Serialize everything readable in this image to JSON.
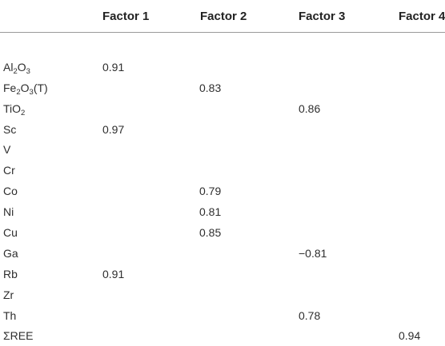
{
  "columns": [
    "",
    "Factor 1",
    "Factor 2",
    "Factor 3",
    "Factor 4"
  ],
  "rows": [
    {
      "label": "Al",
      "sub1": "2",
      "mid": "O",
      "sub2": "3",
      "tail": "",
      "f1": "0.91",
      "f2": "",
      "f3": "",
      "f4": ""
    },
    {
      "label": "Fe",
      "sub1": "2",
      "mid": "O",
      "sub2": "3",
      "tail": "(T)",
      "f1": "",
      "f2": "0.83",
      "f3": "",
      "f4": ""
    },
    {
      "label": "TiO",
      "sub1": "2",
      "mid": "",
      "sub2": "",
      "tail": "",
      "f1": "",
      "f2": "",
      "f3": "0.86",
      "f4": ""
    },
    {
      "label": "Sc",
      "f1": "0.97",
      "f2": "",
      "f3": "",
      "f4": ""
    },
    {
      "label": "V",
      "f1": "",
      "f2": "",
      "f3": "",
      "f4": ""
    },
    {
      "label": "Cr",
      "f1": "",
      "f2": "",
      "f3": "",
      "f4": ""
    },
    {
      "label": "Co",
      "f1": "",
      "f2": "0.79",
      "f3": "",
      "f4": ""
    },
    {
      "label": "Ni",
      "f1": "",
      "f2": "0.81",
      "f3": "",
      "f4": ""
    },
    {
      "label": "Cu",
      "f1": "",
      "f2": "0.85",
      "f3": "",
      "f4": ""
    },
    {
      "label": "Ga",
      "f1": "",
      "f2": "",
      "f3": "−0.81",
      "f4": ""
    },
    {
      "label": "Rb",
      "f1": "0.91",
      "f2": "",
      "f3": "",
      "f4": ""
    },
    {
      "label": "Zr",
      "f1": "",
      "f2": "",
      "f3": "",
      "f4": ""
    },
    {
      "label": "Th",
      "f1": "",
      "f2": "",
      "f3": "0.78",
      "f4": ""
    },
    {
      "label": "ΣREE",
      "f1": "",
      "f2": "",
      "f3": "",
      "f4": "0.94"
    }
  ]
}
